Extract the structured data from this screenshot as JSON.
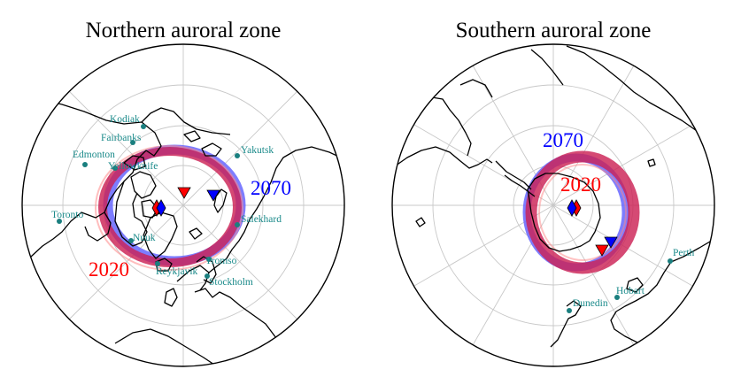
{
  "colors": {
    "year_2020": "#ff0000",
    "year_2070": "#0000ff",
    "city_marker": "#1a7f7f",
    "city_text": "#1a8a8a",
    "oval_2020": "#cc2255",
    "oval_2070": "#6666ff"
  },
  "north": {
    "title": "Northern auroral zone",
    "year_2020_label": "2020",
    "year_2070_label": "2070",
    "cities": [
      "Kodiak",
      "Fairbanks",
      "Edmonton",
      "Yellowknife",
      "Yakutsk",
      "Toronto",
      "Nuuk",
      "Salekhard",
      "Reykjavik",
      "Tromso",
      "Stockholm"
    ],
    "markers": [
      {
        "name": "pole-2020-diamond",
        "shape": "diamond",
        "color": "#ff0000"
      },
      {
        "name": "pole-2070-diamond",
        "shape": "diamond",
        "color": "#0000ff"
      },
      {
        "name": "pole-2020-triangle",
        "shape": "triangle",
        "color": "#ff0000"
      },
      {
        "name": "pole-2070-triangle",
        "shape": "triangle",
        "color": "#0000ff"
      }
    ]
  },
  "south": {
    "title": "Southern auroral zone",
    "year_2020_label": "2020",
    "year_2070_label": "2070",
    "cities": [
      "Perth",
      "Hobart",
      "Dunedin"
    ],
    "markers": [
      {
        "name": "pole-2020-diamond",
        "shape": "diamond",
        "color": "#ff0000"
      },
      {
        "name": "pole-2070-diamond",
        "shape": "diamond",
        "color": "#0000ff"
      },
      {
        "name": "pole-2020-triangle",
        "shape": "triangle",
        "color": "#ff0000"
      },
      {
        "name": "pole-2070-triangle",
        "shape": "triangle",
        "color": "#0000ff"
      }
    ]
  }
}
